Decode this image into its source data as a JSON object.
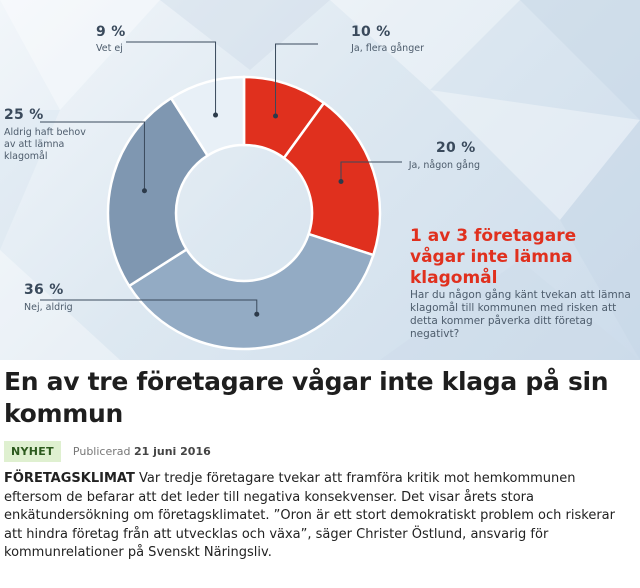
{
  "chart_data": {
    "type": "pie",
    "categories": [
      "Ja, flera gånger",
      "Ja, någon gång",
      "Nej, aldrig",
      "Aldrig haft behov av att lämna klagomål",
      "Vet ej"
    ],
    "values": [
      10,
      20,
      36,
      25,
      9
    ],
    "value_labels": [
      "10 %",
      "20 %",
      "36 %",
      "25 %",
      "9 %"
    ],
    "colors": [
      "#e0301e",
      "#e0301e",
      "#93abc4",
      "#7f97b1",
      "#e8f0f7"
    ],
    "highlight": "1 av 3 företagare vågar inte lämna klagomål",
    "question": "Har du någon gång känt tvekan att lämna klagomål till kommunen med risken att detta kommer påverka ditt företag negativt?"
  },
  "article": {
    "headline": "En av tre företagare vågar inte klaga på sin kommun",
    "tag": "NYHET",
    "published_prefix": "Publicerad",
    "published_date": "21 juni 2016",
    "kicker": "FÖRETAGSKLIMAT",
    "lead": "Var tredje företagare tvekar att framföra kritik mot hemkommunen eftersom de befarar att det leder till negativa konsekvenser. Det visar årets stora enkätundersökning om företagsklimatet. ”Oron är ett stort demokratiskt problem och riskerar att hindra företag från att utvecklas och växa”, säger Christer Östlund, ansvarig för kommunrelationer på Svenskt Näringsliv."
  }
}
